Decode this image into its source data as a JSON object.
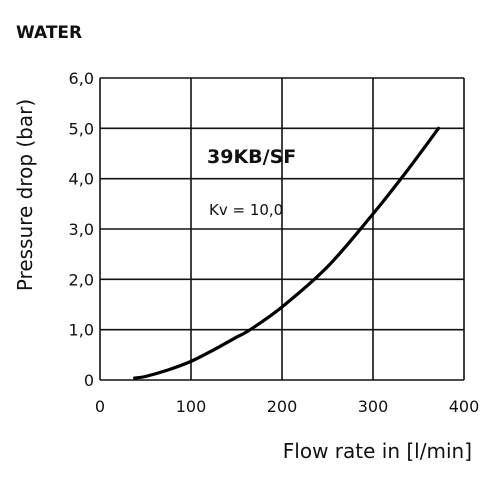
{
  "heading": "WATER",
  "chart_data": {
    "type": "line",
    "title": "",
    "xlabel": "Flow rate in [l/min]",
    "ylabel": "Pressure drop (bar)",
    "xlim": [
      0,
      400
    ],
    "ylim": [
      0,
      6
    ],
    "x_ticks": [
      "0",
      "100",
      "200",
      "300",
      "400"
    ],
    "y_ticks": [
      "0",
      "1,0",
      "2,0",
      "3,0",
      "4,0",
      "5,0",
      "6,0"
    ],
    "grid": true,
    "annotations": {
      "model": "39KB/SF",
      "kv": "Kv = 10,0"
    },
    "series": [
      {
        "x": [
          38,
          50,
          75,
          100,
          125,
          150,
          165,
          200,
          250,
          300,
          335,
          372
        ],
        "y": [
          0.04,
          0.07,
          0.2,
          0.37,
          0.6,
          0.85,
          1.0,
          1.45,
          2.25,
          3.3,
          4.1,
          5.0
        ]
      }
    ],
    "colors": {
      "line": "#000000",
      "grid": "#111111"
    }
  }
}
